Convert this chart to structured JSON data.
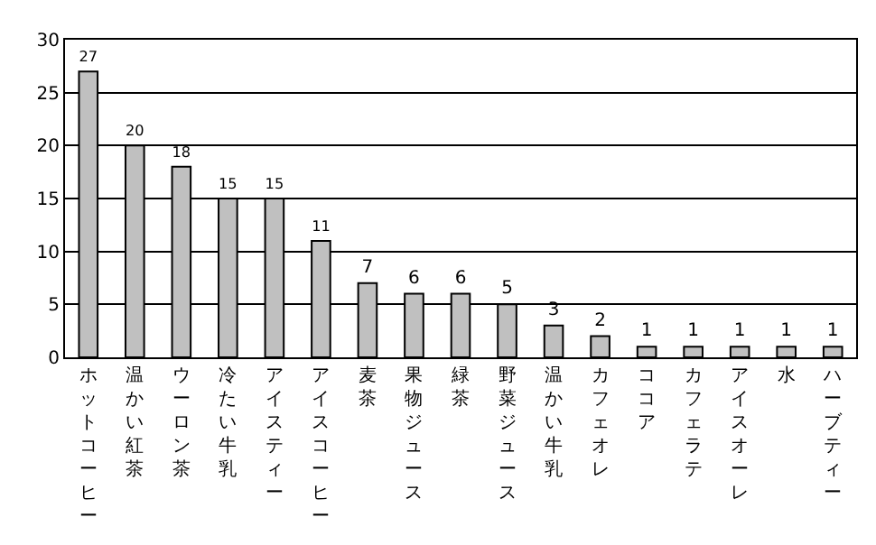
{
  "chart_data": {
    "type": "bar",
    "categories": [
      "ホットコーヒー",
      "温かい紅茶",
      "ウーロン茶",
      "冷たい牛乳",
      "アイスティー",
      "アイスコーヒー",
      "麦茶",
      "果物ジュース",
      "緑茶",
      "野菜ジュース",
      "温かい牛乳",
      "カフェオレ",
      "ココア",
      "カフェラテ",
      "アイスオーレ",
      "水",
      "ハーブティー"
    ],
    "values": [
      27,
      20,
      18,
      15,
      15,
      11,
      7,
      6,
      6,
      5,
      3,
      2,
      1,
      1,
      1,
      1,
      1
    ],
    "color": "#c0c0c0",
    "ylim": [
      0,
      30
    ],
    "yticks": [
      0,
      5,
      10,
      15,
      20,
      25,
      30
    ],
    "grid": "y",
    "data_labels": true
  }
}
